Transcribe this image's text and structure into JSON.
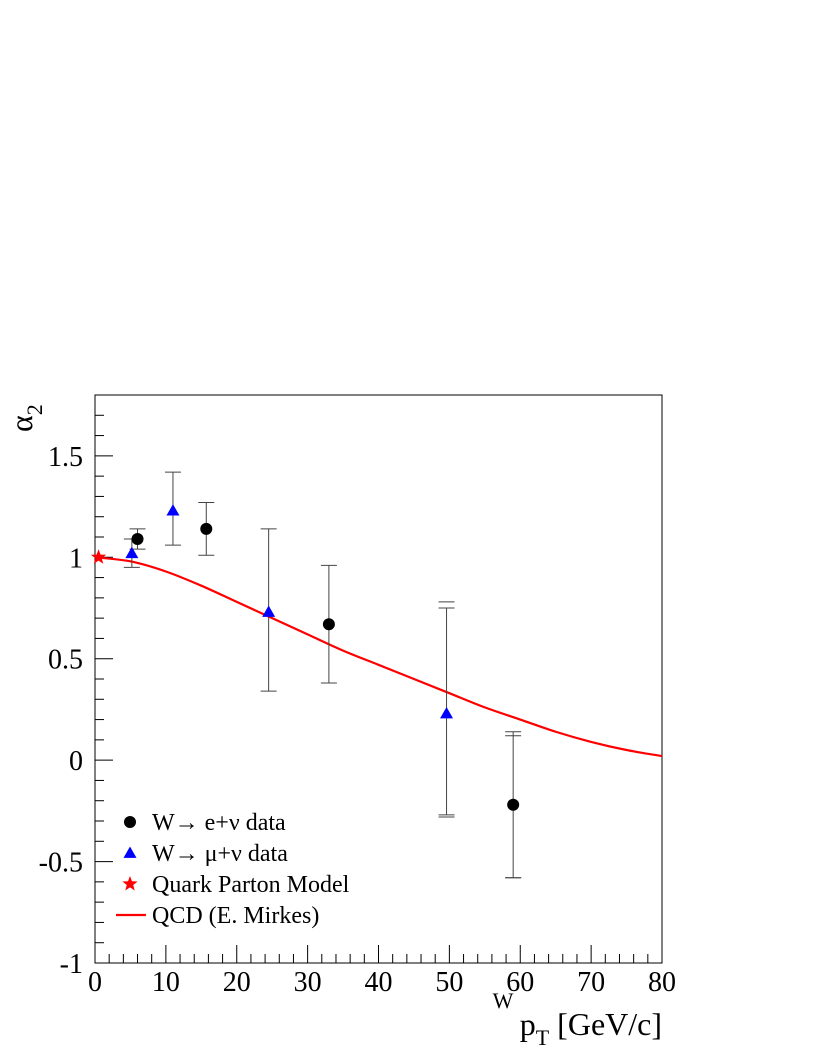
{
  "chart_data": {
    "type": "scatter",
    "title": "",
    "xlabel": {
      "main": "p",
      "sup": "W",
      "sub": "T",
      "unit": " [GeV/c]"
    },
    "ylabel": {
      "main": "α",
      "sub": "2"
    },
    "xlim": [
      0,
      80
    ],
    "ylim": [
      -1,
      1.8
    ],
    "x_ticks": [
      0,
      10,
      20,
      30,
      40,
      50,
      60,
      70,
      80
    ],
    "x_tick_labels": [
      "0",
      "10",
      "20",
      "30",
      "40",
      "50",
      "60",
      "70",
      "80"
    ],
    "y_ticks": [
      -1,
      -0.5,
      0,
      0.5,
      1,
      1.5
    ],
    "y_tick_labels": [
      "-1",
      "-0.5",
      "0",
      "0.5",
      "1",
      "1.5"
    ],
    "grid": false,
    "legend_position": "bottom-left",
    "series": [
      {
        "name": "W→ e+ν data",
        "marker": "circle",
        "color": "#000000",
        "points": [
          {
            "x": 6.0,
            "y": 1.09,
            "ylo": 1.04,
            "yhi": 1.14
          },
          {
            "x": 15.7,
            "y": 1.14,
            "ylo": 1.01,
            "yhi": 1.27
          },
          {
            "x": 33.0,
            "y": 0.67,
            "ylo": 0.38,
            "yhi": 0.96
          },
          {
            "x": 59.0,
            "y": -0.22,
            "ylo": -0.58,
            "yhi": 0.14
          }
        ]
      },
      {
        "name": "W→ μ+ν data",
        "marker": "triangle",
        "color": "#0000ff",
        "points": [
          {
            "x": 5.2,
            "y": 1.02,
            "ylo": 0.95,
            "yhi": 1.09
          },
          {
            "x": 11.0,
            "y": 1.23,
            "ylo": 1.06,
            "yhi": 1.42
          },
          {
            "x": 24.5,
            "y": 0.73,
            "ylo": 0.34,
            "yhi": 1.14
          },
          {
            "x": 49.6,
            "y": 0.23,
            "ylo": -0.27,
            "yhi": 0.75
          }
        ]
      },
      {
        "name": "Quark Parton Model",
        "marker": "star",
        "color": "#ff0000",
        "points": [
          {
            "x": 0.5,
            "y": 1.0
          }
        ]
      },
      {
        "name": "QCD (E. Mirkes)",
        "marker": "line",
        "color": "#ff0000",
        "x": [
          0,
          5,
          10,
          15,
          20,
          25,
          30,
          35,
          40,
          45,
          50,
          55,
          60,
          65,
          70,
          75,
          80
        ],
        "y": [
          1.0,
          0.98,
          0.93,
          0.86,
          0.78,
          0.7,
          0.62,
          0.54,
          0.47,
          0.4,
          0.33,
          0.26,
          0.2,
          0.14,
          0.09,
          0.05,
          0.02
        ]
      }
    ],
    "extra_marks": [
      {
        "x": 49.6,
        "y": 0.78,
        "note": ""
      },
      {
        "x": 49.6,
        "y": -0.28,
        "note": ""
      },
      {
        "x": 59.0,
        "y": 0.12,
        "note": ""
      },
      {
        "x": 59.0,
        "y": -0.58,
        "note": ""
      }
    ]
  }
}
